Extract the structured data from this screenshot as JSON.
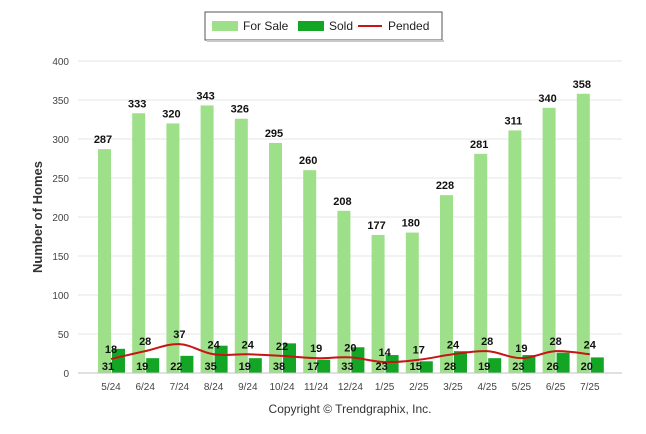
{
  "chart_data": {
    "type": "bar",
    "ylabel": "Number of Homes",
    "ylim": [
      0,
      400
    ],
    "yticks": [
      0,
      50,
      100,
      150,
      200,
      250,
      300,
      350,
      400
    ],
    "grid": true,
    "legend_position": "top-center",
    "categories": [
      "5/24",
      "6/24",
      "7/24",
      "8/24",
      "9/24",
      "10/24",
      "11/24",
      "12/24",
      "1/25",
      "2/25",
      "3/25",
      "4/25",
      "5/25",
      "6/25",
      "7/25"
    ],
    "series": [
      {
        "name": "For Sale",
        "type": "bar",
        "color": "#9ee08a",
        "values": [
          287,
          333,
          320,
          343,
          326,
          295,
          260,
          208,
          177,
          180,
          228,
          281,
          311,
          340,
          358
        ]
      },
      {
        "name": "Sold",
        "type": "bar",
        "color": "#12a624",
        "values": [
          31,
          19,
          22,
          35,
          19,
          38,
          17,
          33,
          23,
          15,
          28,
          19,
          23,
          26,
          20
        ]
      },
      {
        "name": "Pended",
        "type": "line",
        "color": "#c81414",
        "values": [
          18,
          28,
          37,
          24,
          24,
          22,
          19,
          20,
          14,
          17,
          24,
          28,
          19,
          28,
          24
        ]
      }
    ],
    "footer": "Copyright © Trendgraphix, Inc."
  }
}
